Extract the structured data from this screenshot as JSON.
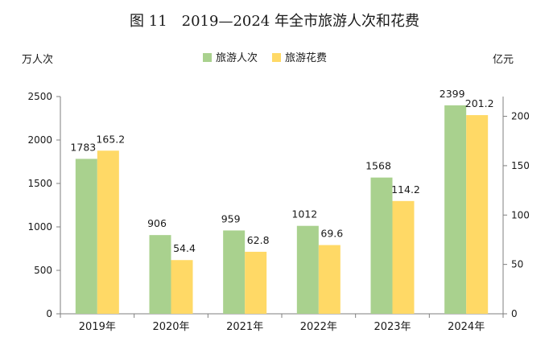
{
  "colors": {
    "series_1": "#a9d18e",
    "series_2": "#ffd966",
    "axis": "#7f7f7f",
    "text": "#1a1a1a"
  },
  "chart_data": {
    "type": "bar",
    "title": "图 11　2019—2024 年全市旅游人次和花费",
    "categories": [
      "2019年",
      "2020年",
      "2021年",
      "2022年",
      "2023年",
      "2024年"
    ],
    "series": [
      {
        "name": "旅游人次",
        "axis": "left",
        "values": [
          1783,
          906,
          959,
          1012,
          1568,
          2399
        ],
        "labels": [
          "1783",
          "906",
          "959",
          "1012",
          "1568",
          "2399"
        ]
      },
      {
        "name": "旅游花费",
        "axis": "right",
        "values": [
          165.2,
          54.4,
          62.8,
          69.6,
          114.2,
          201.2
        ],
        "labels": [
          "165.2",
          "54.4",
          "62.8",
          "69.6",
          "114.2",
          "201.2"
        ]
      }
    ],
    "y_left": {
      "unit_label": "万人次",
      "ylim": [
        0,
        2500
      ],
      "ticks": [
        0,
        500,
        1000,
        1500,
        2000,
        2500
      ],
      "tick_labels": [
        "0",
        "500",
        "1000",
        "1500",
        "2000",
        "2500"
      ]
    },
    "y_right": {
      "unit_label": "亿元",
      "ylim": [
        0,
        220
      ],
      "ticks": [
        0,
        50,
        100,
        150,
        200
      ],
      "tick_labels": [
        "0",
        "50",
        "100",
        "150",
        "200"
      ]
    },
    "legend_position": "top-center",
    "grid": false
  }
}
